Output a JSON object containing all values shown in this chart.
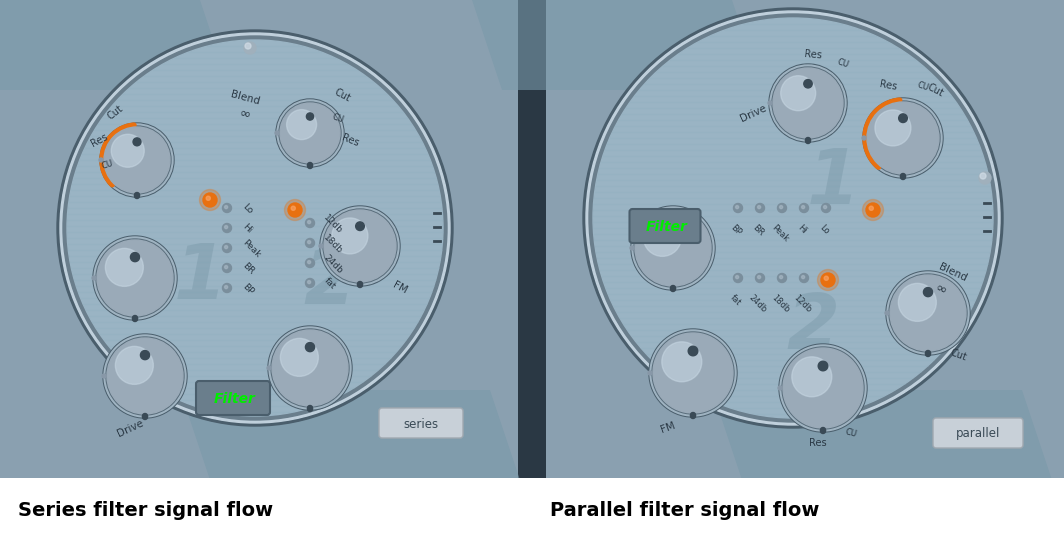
{
  "title_left": "Series filter signal flow",
  "title_right": "Parallel filter signal flow",
  "bg_color": "#ffffff",
  "panel_bg_left": "#8fa4b4",
  "panel_bg_right": "#8fa4b4",
  "divider_color": "#3a4a56",
  "circle_color": "#9ab4c4",
  "circle_edge_light": "#c8d8e4",
  "circle_edge_dark": "#5a6e7c",
  "knob_body": "#9aaab8",
  "knob_ring": "#b8c8d4",
  "knob_shadow": "#5a6878",
  "knob_highlight": "#d0dce6",
  "orange_color": "#e87010",
  "green_color": "#00ee00",
  "led_off_color": "#8898a8",
  "led_on_color": "#c0ccda",
  "led_lit_color": "#dde8f0",
  "label_dark": "#2a3844",
  "series_label": "series",
  "parallel_label": "parallel",
  "filter_text": "Filter",
  "badge_color": "#7a8e9c",
  "tag_color": "#c4ccd4",
  "tag_text": "#3a4a56",
  "title_fontsize": 14,
  "diagonal_stripe_color": "#7a90a0"
}
